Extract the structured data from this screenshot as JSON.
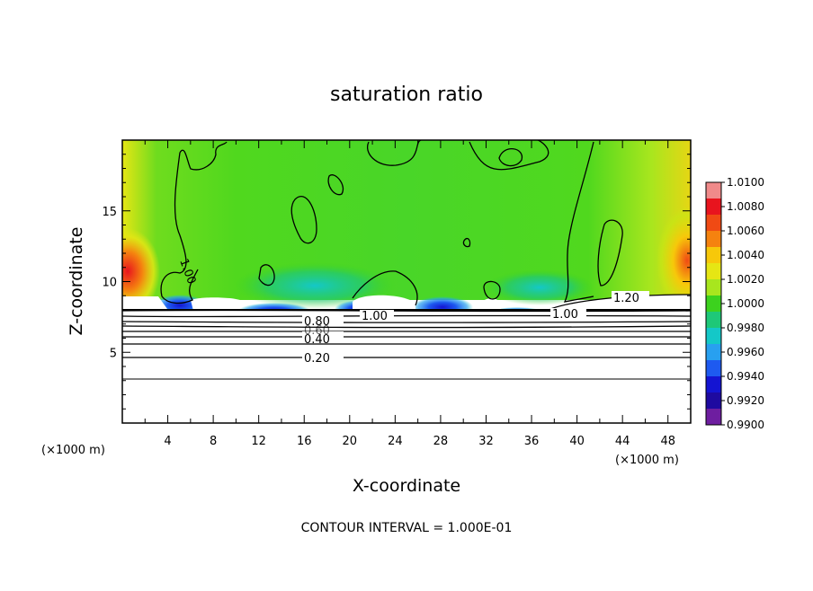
{
  "chart_data": {
    "type": "heatmap",
    "title": "saturation ratio",
    "xlabel": "X-coordinate",
    "ylabel": "Z-coordinate",
    "x_unit": "(×1000 m)",
    "z_unit": "(×1000 m)",
    "xlim": [
      0,
      50
    ],
    "ylim": [
      0,
      20
    ],
    "x_ticks": [
      "4",
      "8",
      "12",
      "16",
      "20",
      "24",
      "28",
      "32",
      "36",
      "40",
      "44",
      "48"
    ],
    "y_ticks": [
      "5",
      "10",
      "15"
    ],
    "colorbar": {
      "ticks": [
        "1.0100",
        "1.0080",
        "1.0060",
        "1.0040",
        "1.0020",
        "1.0000",
        "0.9980",
        "0.9960",
        "0.9940",
        "0.9920",
        "0.9900"
      ],
      "colors": [
        "#f08a8a",
        "#e8141e",
        "#f04a14",
        "#f5820f",
        "#f7c80a",
        "#e6e614",
        "#a8e61e",
        "#3cd21e",
        "#1ec878",
        "#14c8c8",
        "#28a0f0",
        "#1e5af0",
        "#1414d2",
        "#1e0aa0",
        "#6e1ea0"
      ]
    },
    "contour_labels": [
      "1.00",
      "0.80",
      "0.60",
      "0.40",
      "0.20",
      "1.00",
      "1.00",
      "1.20"
    ],
    "contour_interval_text": "CONTOUR INTERVAL = 1.000E-01"
  }
}
